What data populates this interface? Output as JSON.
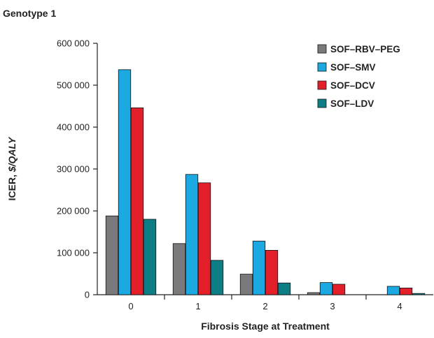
{
  "chart_data": {
    "type": "bar",
    "title": "Genotype 1",
    "xlabel": "Fibrosis Stage at Treatment",
    "ylabel": "ICER, $/QALY",
    "ylim": [
      0,
      600000
    ],
    "y_ticks": [
      "0",
      "100 000",
      "200 000",
      "300 000",
      "400 000",
      "500 000",
      "600 000"
    ],
    "categories": [
      "0",
      "1",
      "2",
      "3",
      "4"
    ],
    "legend_position": "top-right",
    "grid": false,
    "series": [
      {
        "name": "SOF–RBV–PEG",
        "color": "#7a7a7c",
        "values": [
          188000,
          122000,
          49000,
          5000,
          null
        ]
      },
      {
        "name": "SOF–SMV",
        "color": "#1ca9e1",
        "values": [
          537000,
          287000,
          128000,
          29000,
          20000
        ]
      },
      {
        "name": "SOF–DCV",
        "color": "#e3202a",
        "values": [
          446000,
          267000,
          106000,
          25000,
          16000
        ]
      },
      {
        "name": "SOF–LDV",
        "color": "#0d7e86",
        "values": [
          180000,
          82000,
          28000,
          null,
          3000
        ]
      }
    ]
  }
}
